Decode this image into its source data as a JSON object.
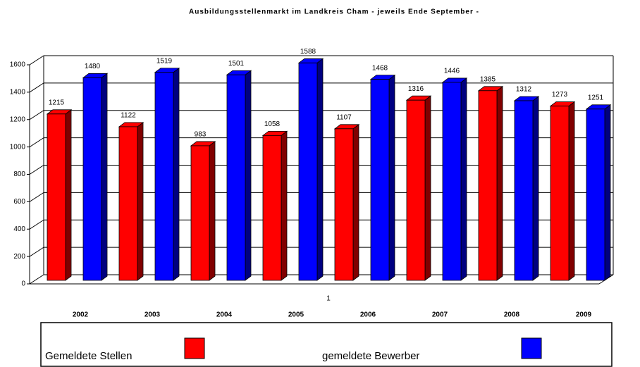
{
  "chart_data": {
    "type": "bar3d",
    "title": "Ausbildungsstellenmarkt im Landkreis Cham - jeweils Ende September -",
    "xlabel": "1",
    "categories": [
      "2002",
      "2003",
      "2004",
      "2005",
      "2006",
      "2007",
      "2008",
      "2009"
    ],
    "series": [
      {
        "name": "Gemeldete Stellen",
        "color": "#ff0000",
        "side": "#800000",
        "values": [
          1215,
          1122,
          983,
          1058,
          1107,
          1316,
          1385,
          1273
        ]
      },
      {
        "name": "gemeldete Bewerber",
        "color": "#0000ff",
        "side": "#000080",
        "values": [
          1480,
          1519,
          1501,
          1588,
          1468,
          1446,
          1312,
          1251
        ]
      }
    ],
    "ylim": [
      0,
      1600
    ],
    "yticks": [
      0,
      200,
      400,
      600,
      800,
      1000,
      1200,
      1400,
      1600
    ],
    "grid": true
  }
}
